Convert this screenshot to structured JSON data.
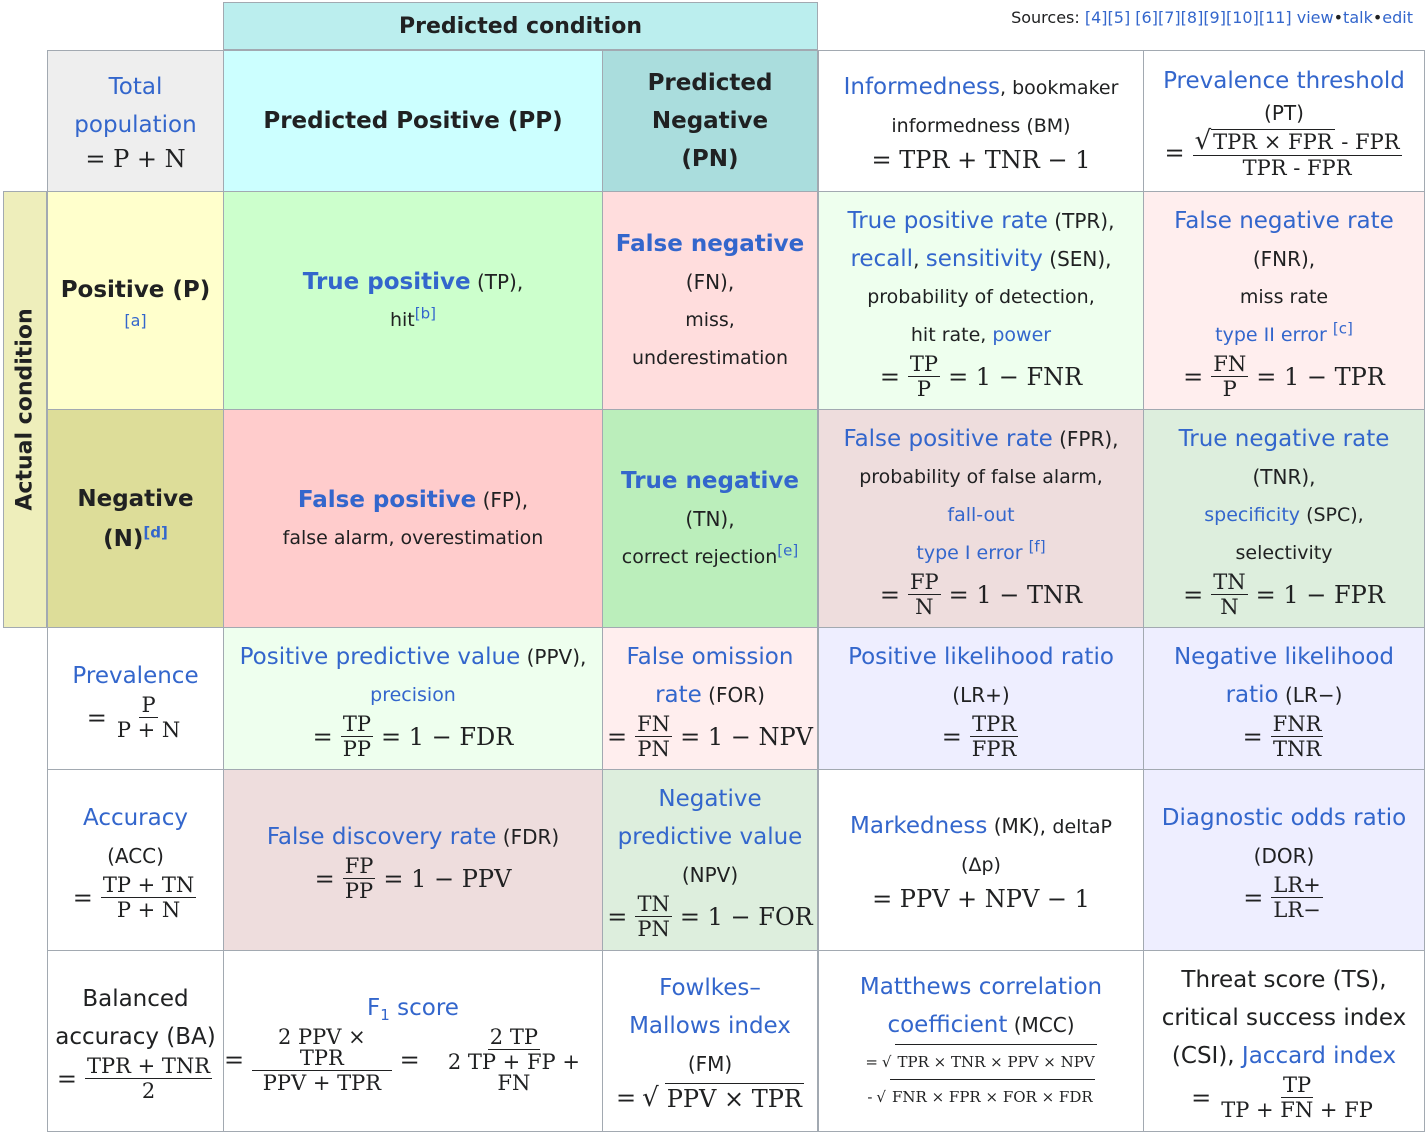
{
  "sources": {
    "label": "Sources:",
    "refs": [
      "[4]",
      "[5]",
      "[6]",
      "[7]",
      "[8]",
      "[9]",
      "[10]",
      "[11]"
    ],
    "view": "view",
    "talk": "talk",
    "edit": "edit",
    "sep": "•"
  },
  "headers": {
    "predicted": "Predicted condition",
    "actual": "Actual condition",
    "pp": "Predicted Positive (PP)",
    "pn": "Predicted Negative (PN)",
    "positive": "Positive (P)",
    "positive_note": "[a]",
    "negative": "Negative (N)",
    "negative_note": "[d]"
  },
  "total": {
    "label": "Total population",
    "formula": "= P + N"
  },
  "tp": {
    "name": "True positive",
    "abbr": " (TP),",
    "alt": "hit",
    "note": "[b]"
  },
  "fn": {
    "name": "False negative",
    "abbr": "(FN),",
    "alt1": "miss,",
    "alt2": "underestimation"
  },
  "fp": {
    "name": "False positive",
    "abbr": " (FP),",
    "alt": "false alarm, overestimation"
  },
  "tn": {
    "name": "True negative",
    "abbr": "(TN),",
    "alt": "correct rejection",
    "note": "[e]"
  },
  "bm": {
    "name": "Informedness",
    "rest1": ", bookmaker",
    "rest2": "informedness (BM)",
    "formula": "= TPR + TNR − 1"
  },
  "pt": {
    "name": "Prevalence threshold",
    "abbr": "(PT)",
    "num_sqrt": "TPR × FPR",
    "num_rest": "- FPR",
    "den": "TPR - FPR"
  },
  "tpr": {
    "name": "True positive rate",
    "abbr": " (TPR),",
    "l2a": "recall",
    "l2b": ", ",
    "l2c": "sensitivity",
    "l2d": " (SEN),",
    "l3": "probability of detection,",
    "l4a": "hit rate, ",
    "l4b": "power",
    "num": "TP",
    "den": "P",
    "rest": "= 1 − FNR"
  },
  "fnr": {
    "name": "False negative rate",
    "abbr": "(FNR),",
    "l3": "miss rate",
    "l4": "type II error ",
    "note": "[c]",
    "num": "FN",
    "den": "P",
    "rest": "= 1 − TPR"
  },
  "fpr": {
    "name": "False positive rate",
    "abbr": " (FPR),",
    "l2": "probability of false alarm,",
    "l3": "fall-out",
    "l4": "type I error ",
    "note": "[f]",
    "num": "FP",
    "den": "N",
    "rest": "= 1 − TNR"
  },
  "tnr": {
    "name": "True negative rate",
    "abbr": "(TNR),",
    "l3a": "specificity",
    "l3b": " (SPC),",
    "l4": "selectivity",
    "num": "TN",
    "den": "N",
    "rest": "= 1 − FPR"
  },
  "prevalence": {
    "name": "Prevalence",
    "num": "P",
    "den": "P + N"
  },
  "ppv": {
    "name": "Positive predictive value",
    "abbr": " (PPV),",
    "l2": "precision",
    "num": "TP",
    "den": "PP",
    "rest": "= 1 − FDR"
  },
  "for": {
    "name1": "False omission",
    "name2": "rate",
    "abbr": " (FOR)",
    "num": "FN",
    "den": "PN",
    "rest": "= 1 − NPV"
  },
  "lrp": {
    "name": "Positive likelihood ratio",
    "abbr": "(LR+)",
    "num": "TPR",
    "den": "FPR"
  },
  "lrn": {
    "name1": "Negative likelihood",
    "name2": "ratio",
    "abbr": " (LR−)",
    "num": "FNR",
    "den": "TNR"
  },
  "acc": {
    "name": "Accuracy",
    "abbr": "(ACC)",
    "num": "TP + TN",
    "den": "P + N"
  },
  "fdr": {
    "name": "False discovery rate",
    "abbr": " (FDR)",
    "num": "FP",
    "den": "PP",
    "rest": "= 1 − PPV"
  },
  "npv": {
    "name1": "Negative",
    "name2": "predictive value",
    "abbr": "(NPV)",
    "num": "TN",
    "den": "PN",
    "rest": "= 1 − FOR"
  },
  "mk": {
    "name": "Markedness",
    "rest1": " (MK), ",
    "rest1b": "deltaP",
    "rest2": "(Δp)",
    "formula": "= PPV + NPV − 1"
  },
  "dor": {
    "name": "Diagnostic odds ratio",
    "abbr": "(DOR)",
    "num": "LR+",
    "den": "LR−"
  },
  "ba": {
    "l1": "Balanced",
    "l2": "accuracy (BA)",
    "num": "TPR + TNR",
    "den": "2"
  },
  "f1": {
    "name": "F",
    "sub": "1",
    "name2": " score",
    "num1": "2 PPV × TPR",
    "den1": "PPV + TPR",
    "num2": "2 TP",
    "den2": "2 TP + FP + FN"
  },
  "fm": {
    "name1": "Fowlkes–",
    "name2": "Mallows index",
    "abbr": "(FM)",
    "sqrt": "PPV × TPR"
  },
  "mcc": {
    "name1": "Matthews correlation",
    "name2": "coefficient",
    "abbr": " (MCC)",
    "row1": "TPR × TNR × PPV × NPV",
    "row2": "FNR × FPR × FOR × FDR"
  },
  "ts": {
    "l1": "Threat score (TS),",
    "l2": "critical success index",
    "l3a": "(CSI), ",
    "l3b": "Jaccard index",
    "num": "TP",
    "den": "TP + FN + FP"
  },
  "symbols": {
    "eq": "=",
    "minus": "-",
    "surd": "√"
  },
  "colors": {
    "header_teal": "#bbeeee",
    "pp": "#ccffff",
    "pn": "#aadddd",
    "total": "#eeeeee",
    "positive": "#ffffcc",
    "negative": "#dddd99",
    "side": "#eeeebb",
    "tp": "#ccffcc",
    "fn": "#ffdddd",
    "fp": "#ffcccc",
    "tn": "#bbeebb",
    "tpr": "#eeffee",
    "fnr": "#ffeeee",
    "fpr": "#eedddd",
    "tnr": "#ddeedd",
    "lr": "#eeeeff",
    "white": "#ffffff",
    "link": "#3366cc"
  }
}
